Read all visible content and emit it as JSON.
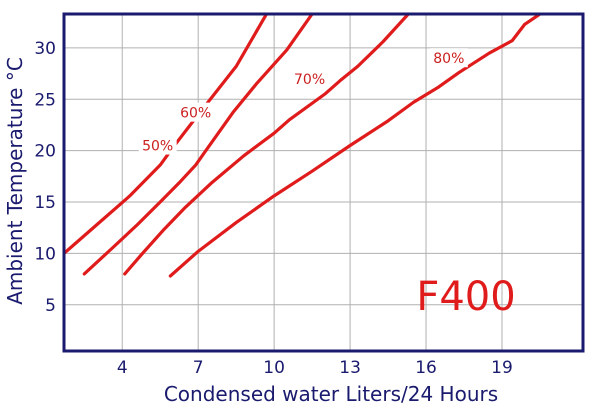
{
  "chart_data": {
    "type": "line",
    "title": "",
    "xlabel": "Condensed water Liters/24 Hours",
    "ylabel": "Ambient Temperature °C",
    "xlim": [
      1.7,
      22.2
    ],
    "ylim": [
      0.5,
      33.3
    ],
    "x_ticks": [
      4,
      7,
      10,
      13,
      16,
      19
    ],
    "y_ticks": [
      5,
      10,
      15,
      20,
      25,
      30
    ],
    "grid": true,
    "legend": "none",
    "annotation": "F400",
    "colors": {
      "curve": "#e01b1b",
      "frame": "#1a1a6e",
      "grid": "#b0b0b0"
    },
    "series": [
      {
        "name": "50%",
        "label_at": [
          5.4,
          20.4
        ],
        "points": [
          [
            1.7,
            10.0
          ],
          [
            3.0,
            12.8
          ],
          [
            4.3,
            15.6
          ],
          [
            5.5,
            18.6
          ],
          [
            6.0,
            20.3
          ],
          [
            7.0,
            23.5
          ],
          [
            8.5,
            28.2
          ],
          [
            9.7,
            33.3
          ]
        ]
      },
      {
        "name": "60%",
        "label_at": [
          6.9,
          23.6
        ],
        "points": [
          [
            2.5,
            8.0
          ],
          [
            3.6,
            10.5
          ],
          [
            4.6,
            12.8
          ],
          [
            5.5,
            15.0
          ],
          [
            6.3,
            17.0
          ],
          [
            6.9,
            18.6
          ],
          [
            7.3,
            20.0
          ],
          [
            8.4,
            23.8
          ],
          [
            9.3,
            26.5
          ],
          [
            10.5,
            29.8
          ],
          [
            11.5,
            33.3
          ]
        ]
      },
      {
        "name": "70%",
        "label_at": [
          11.4,
          26.9
        ],
        "points": [
          [
            4.1,
            8.0
          ],
          [
            4.8,
            10.0
          ],
          [
            5.6,
            12.2
          ],
          [
            6.5,
            14.5
          ],
          [
            7.5,
            16.8
          ],
          [
            8.8,
            19.5
          ],
          [
            10.0,
            21.7
          ],
          [
            10.6,
            23.0
          ],
          [
            12.0,
            25.5
          ],
          [
            12.6,
            26.8
          ],
          [
            13.3,
            28.2
          ],
          [
            14.3,
            30.6
          ],
          [
            15.3,
            33.3
          ]
        ]
      },
      {
        "name": "80%",
        "label_at": [
          16.9,
          28.9
        ],
        "points": [
          [
            5.9,
            7.8
          ],
          [
            7.0,
            10.2
          ],
          [
            8.5,
            13.0
          ],
          [
            10.0,
            15.6
          ],
          [
            11.5,
            18.0
          ],
          [
            13.0,
            20.5
          ],
          [
            14.5,
            22.9
          ],
          [
            15.5,
            24.7
          ],
          [
            16.5,
            26.2
          ],
          [
            17.3,
            27.6
          ],
          [
            18.5,
            29.5
          ],
          [
            19.4,
            30.7
          ],
          [
            19.9,
            32.3
          ],
          [
            20.5,
            33.3
          ]
        ]
      }
    ]
  }
}
